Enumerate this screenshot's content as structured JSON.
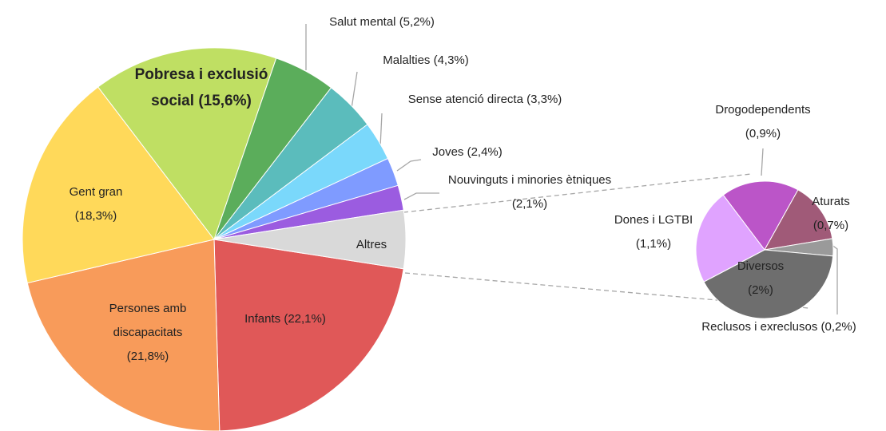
{
  "chart_data": [
    {
      "type": "pie",
      "categories": [
        "Infants",
        "Persones amb discapacitats",
        "Gent gran",
        "Pobresa i exclusió social",
        "Salut mental",
        "Malalties",
        "Sense atenció directa",
        "Joves",
        "Nouvinguts i minories ètniques",
        "Altres"
      ],
      "values": [
        22.1,
        21.8,
        18.3,
        15.6,
        5.2,
        4.3,
        3.3,
        2.4,
        2.1,
        4.9
      ],
      "value_labels": [
        "(22,1%)",
        "(21,8%)",
        "(18,3%)",
        "(15,6%)",
        "(5,2%)",
        "(4,3%)",
        "(3,3%)",
        "(2,4%)",
        "(2,1%)",
        null
      ],
      "colors": [
        "#e05858",
        "#f89b5a",
        "#ffd95a",
        "#bfdf63",
        "#5bad5b",
        "#5bbcbc",
        "#7ad8fb",
        "#7f9bff",
        "#9b5ce0",
        "#d9d9d9"
      ]
    },
    {
      "type": "pie",
      "categories": [
        "Drogodependents",
        "Aturats",
        "Reclusos i exreclusos",
        "Diversos",
        "Dones i LGTBI"
      ],
      "values": [
        0.9,
        0.7,
        0.2,
        2,
        1.1
      ],
      "value_labels": [
        "(0,9%)",
        "(0,7%)",
        "(0,2%)",
        "(2%)",
        "(1,1%)"
      ],
      "colors": [
        "#bb55c8",
        "#a05a78",
        "#9a9a9a",
        "#6e6e6e",
        "#e0a3ff"
      ]
    }
  ]
}
